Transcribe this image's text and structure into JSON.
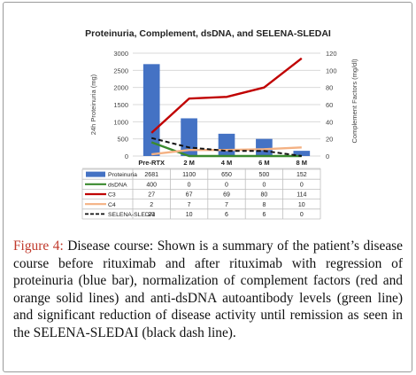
{
  "chart_data": {
    "type": "bar+line",
    "title": "Proteinuria, Complement, dsDNA, and SELENA-SLEDAI",
    "categories": [
      "Pre-RTX",
      "2 M",
      "4 M",
      "6 M",
      "8 M"
    ],
    "y_left": {
      "label": "24h Proteinuria (mg)",
      "lim": [
        0,
        3000
      ],
      "ticks": [
        "0",
        "500",
        "1000",
        "1500",
        "2000",
        "2500",
        "3000"
      ]
    },
    "y_right": {
      "label": "Complement Factors (mg/dl)",
      "lim": [
        0,
        120
      ],
      "ticks": [
        "0",
        "20",
        "40",
        "60",
        "80",
        "100",
        "120"
      ]
    },
    "series": [
      {
        "name": "Proteinuria",
        "kind": "bar",
        "axis": "left",
        "color": "#4472c4",
        "values": [
          2681,
          1100,
          650,
          500,
          152
        ]
      },
      {
        "name": "dsDNA",
        "kind": "line",
        "axis": "left",
        "color": "#3a8a2e",
        "values": [
          400,
          0,
          0,
          0,
          0
        ]
      },
      {
        "name": "C3",
        "kind": "line",
        "axis": "right",
        "color": "#c00000",
        "values": [
          27,
          67,
          69,
          80,
          114
        ]
      },
      {
        "name": "C4",
        "kind": "line",
        "axis": "right",
        "color": "#f4b183",
        "values": [
          2,
          7,
          7,
          8,
          10
        ]
      },
      {
        "name": "SELENA-SLEDAI",
        "kind": "dashed",
        "axis": "right",
        "color": "#111111",
        "values": [
          21,
          10,
          6,
          6,
          0
        ]
      }
    ],
    "table": [
      [
        "2681",
        "1100",
        "650",
        "500",
        "152"
      ],
      [
        "400",
        "0",
        "0",
        "0",
        "0"
      ],
      [
        "27",
        "67",
        "69",
        "80",
        "114"
      ],
      [
        "2",
        "7",
        "7",
        "8",
        "10"
      ],
      [
        "21",
        "10",
        "6",
        "6",
        "0"
      ]
    ]
  },
  "caption": {
    "label": "Figure 4:",
    "text": " Disease course: Shown is a summary of the patient’s disease course before rituximab and after rituximab with regression of proteinuria (blue bar), normalization of complement factors (red and orange solid lines) and anti-dsDNA autoantibody levels (green line) and significant reduction of disease activity until remission as seen in the SELENA-SLEDAI (black dash line)."
  }
}
